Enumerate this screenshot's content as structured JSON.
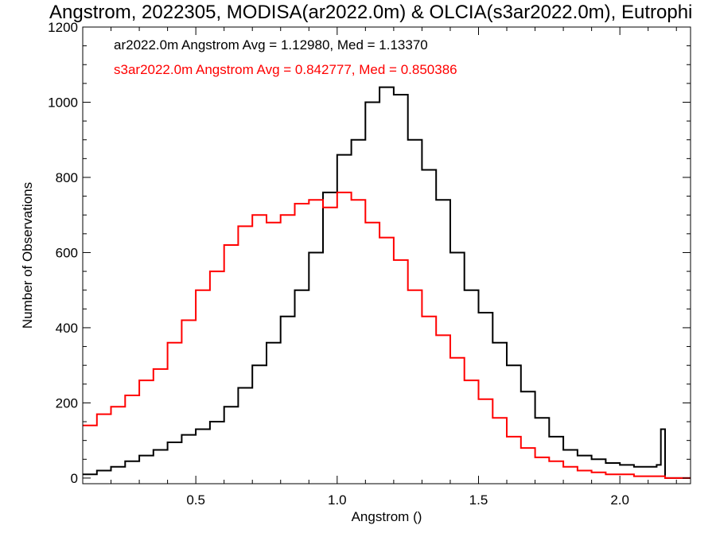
{
  "chart_data": {
    "type": "line",
    "title": "Angstrom, 2022305, MODISA(ar2022.0m) & OLCIA(s3ar2022.0m), Eutrophi",
    "xlabel": "Angstrom ()",
    "ylabel": "Number of Observations",
    "xlim": [
      0.1,
      2.25
    ],
    "ylim": [
      -15,
      1200
    ],
    "xticks": [
      0.5,
      1.0,
      1.5,
      2.0
    ],
    "xtick_labels": [
      "0.5",
      "1.0",
      "1.5",
      "2.0"
    ],
    "yticks": [
      0,
      200,
      400,
      600,
      800,
      1000,
      1200
    ],
    "ytick_labels": [
      "0",
      "200",
      "400",
      "600",
      "800",
      "1000",
      "1200"
    ],
    "grid": false,
    "legend_placement": "top-left",
    "series": [
      {
        "name": "ar2022.0m",
        "legend_text": "ar2022.0m Angstrom Avg = 1.12980, Med = 1.13370",
        "color": "#000000",
        "x": [
          0.1,
          0.15,
          0.2,
          0.25,
          0.3,
          0.35,
          0.4,
          0.45,
          0.5,
          0.55,
          0.6,
          0.65,
          0.7,
          0.75,
          0.8,
          0.85,
          0.9,
          0.95,
          1.0,
          1.05,
          1.1,
          1.15,
          1.2,
          1.25,
          1.3,
          1.35,
          1.4,
          1.45,
          1.5,
          1.55,
          1.6,
          1.65,
          1.7,
          1.75,
          1.8,
          1.85,
          1.9,
          1.95,
          2.0,
          2.05,
          2.1,
          2.13,
          2.145,
          2.16,
          2.25
        ],
        "y": [
          10,
          20,
          30,
          45,
          60,
          75,
          95,
          115,
          130,
          150,
          190,
          240,
          300,
          360,
          430,
          500,
          600,
          760,
          860,
          900,
          1000,
          1040,
          1020,
          900,
          820,
          740,
          600,
          500,
          440,
          360,
          300,
          230,
          160,
          110,
          75,
          60,
          50,
          40,
          35,
          30,
          30,
          35,
          130,
          0,
          0
        ]
      },
      {
        "name": "s3ar2022.0m",
        "legend_text": "s3ar2022.0m Angstrom Avg = 0.842777, Med = 0.850386",
        "color": "#ff0000",
        "x": [
          0.1,
          0.15,
          0.2,
          0.25,
          0.3,
          0.35,
          0.4,
          0.45,
          0.5,
          0.55,
          0.6,
          0.65,
          0.7,
          0.75,
          0.8,
          0.85,
          0.9,
          0.95,
          1.0,
          1.05,
          1.1,
          1.15,
          1.2,
          1.25,
          1.3,
          1.35,
          1.4,
          1.45,
          1.5,
          1.55,
          1.6,
          1.65,
          1.7,
          1.75,
          1.8,
          1.85,
          1.9,
          1.95,
          2.0,
          2.05,
          2.1,
          2.15,
          2.16,
          2.25
        ],
        "y": [
          140,
          170,
          190,
          220,
          260,
          290,
          360,
          420,
          500,
          550,
          620,
          670,
          700,
          680,
          700,
          730,
          740,
          720,
          760,
          740,
          680,
          640,
          580,
          500,
          430,
          380,
          320,
          260,
          210,
          160,
          110,
          80,
          55,
          45,
          30,
          20,
          15,
          10,
          10,
          5,
          5,
          5,
          0,
          0
        ]
      }
    ]
  }
}
